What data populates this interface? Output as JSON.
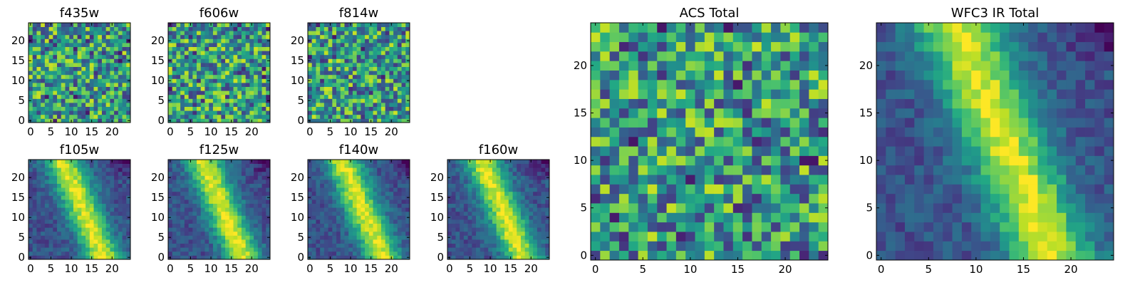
{
  "chart_data": [
    {
      "id": "f435w",
      "type": "heatmap",
      "title": "f435w",
      "grid_size": 25,
      "pattern": "noise",
      "xticks": [
        0,
        5,
        10,
        15,
        20
      ],
      "yticks": [
        0,
        5,
        10,
        15,
        20
      ],
      "xlim": [
        0,
        24
      ],
      "ylim": [
        0,
        24
      ],
      "colormap": "viridis"
    },
    {
      "id": "f606w",
      "type": "heatmap",
      "title": "f606w",
      "grid_size": 25,
      "pattern": "noise",
      "xticks": [
        0,
        5,
        10,
        15,
        20
      ],
      "yticks": [
        0,
        5,
        10,
        15,
        20
      ],
      "xlim": [
        0,
        24
      ],
      "ylim": [
        0,
        24
      ],
      "colormap": "viridis"
    },
    {
      "id": "f814w",
      "type": "heatmap",
      "title": "f814w",
      "grid_size": 25,
      "pattern": "noise",
      "xticks": [
        0,
        5,
        10,
        15,
        20
      ],
      "yticks": [
        0,
        5,
        10,
        15,
        20
      ],
      "xlim": [
        0,
        24
      ],
      "ylim": [
        0,
        24
      ],
      "colormap": "viridis"
    },
    {
      "id": "f105w",
      "type": "heatmap",
      "title": "f105w",
      "grid_size": 25,
      "pattern": "diagonal",
      "xticks": [
        0,
        5,
        10,
        15,
        20
      ],
      "yticks": [
        0,
        5,
        10,
        15,
        20
      ],
      "xlim": [
        0,
        24
      ],
      "ylim": [
        0,
        24
      ],
      "colormap": "viridis"
    },
    {
      "id": "f125w",
      "type": "heatmap",
      "title": "f125w",
      "grid_size": 25,
      "pattern": "diagonal",
      "xticks": [
        0,
        5,
        10,
        15,
        20
      ],
      "yticks": [
        0,
        5,
        10,
        15,
        20
      ],
      "xlim": [
        0,
        24
      ],
      "ylim": [
        0,
        24
      ],
      "colormap": "viridis"
    },
    {
      "id": "f140w",
      "type": "heatmap",
      "title": "f140w",
      "grid_size": 25,
      "pattern": "diagonal",
      "xticks": [
        0,
        5,
        10,
        15,
        20
      ],
      "yticks": [
        0,
        5,
        10,
        15,
        20
      ],
      "xlim": [
        0,
        24
      ],
      "ylim": [
        0,
        24
      ],
      "colormap": "viridis"
    },
    {
      "id": "f160w",
      "type": "heatmap",
      "title": "f160w",
      "grid_size": 25,
      "pattern": "diagonal",
      "xticks": [
        0,
        5,
        10,
        15,
        20
      ],
      "yticks": [
        0,
        5,
        10,
        15,
        20
      ],
      "xlim": [
        0,
        24
      ],
      "ylim": [
        0,
        24
      ],
      "colormap": "viridis"
    },
    {
      "id": "acs-total",
      "type": "heatmap",
      "title": "ACS Total",
      "grid_size": 25,
      "pattern": "noise",
      "xticks": [
        0,
        5,
        10,
        15,
        20
      ],
      "yticks": [
        0,
        5,
        10,
        15,
        20
      ],
      "xlim": [
        0,
        24
      ],
      "ylim": [
        0,
        24
      ],
      "colormap": "viridis"
    },
    {
      "id": "wfc3-ir-total",
      "type": "heatmap",
      "title": "WFC3 IR Total",
      "grid_size": 25,
      "pattern": "diagonal",
      "xticks": [
        0,
        5,
        10,
        15,
        20
      ],
      "yticks": [
        0,
        5,
        10,
        15,
        20
      ],
      "xlim": [
        0,
        24
      ],
      "ylim": [
        0,
        24
      ],
      "colormap": "viridis"
    }
  ]
}
